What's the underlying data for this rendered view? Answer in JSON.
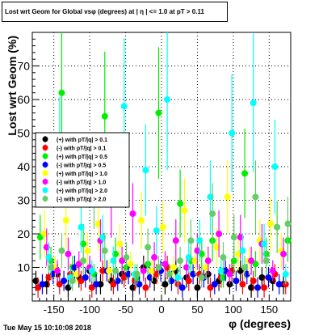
{
  "chart_data": {
    "type": "scatter",
    "title": "Lost wrt Geom for Global vsφ (degrees) at | η | <= 1.0 at pT > 0.11",
    "xlabel": "φ (degrees)",
    "ylabel": "Lost wrt Geom (%)",
    "xlim": [
      -180,
      180
    ],
    "ylim": [
      0,
      80
    ],
    "x_ticks": [
      -150,
      -100,
      -50,
      0,
      50,
      100,
      150
    ],
    "y_ticks": [
      10,
      20,
      30,
      40,
      50,
      60,
      70
    ],
    "grid": true,
    "legend_position": "center-left",
    "series": [
      {
        "name": "(+) with pT/|q| > 0.1",
        "color": "#000000",
        "marker": "circle",
        "x": [
          -175,
          -160,
          -145,
          -130,
          -115,
          -100,
          -85,
          -70,
          -55,
          -40,
          -25,
          -10,
          5,
          20,
          35,
          50,
          65,
          80,
          95,
          110,
          125,
          140,
          155,
          170
        ],
        "y": [
          6,
          5,
          8,
          4,
          7,
          9,
          5,
          6,
          8,
          4,
          10,
          6,
          5,
          9,
          7,
          4,
          8,
          6,
          5,
          9,
          4,
          7,
          6,
          5
        ]
      },
      {
        "name": "(-) with pT/|q| > 0.1",
        "color": "#ff0000",
        "marker": "circle",
        "x": [
          -172,
          -157,
          -142,
          -127,
          -112,
          -97,
          -82,
          -67,
          -52,
          -37,
          -22,
          -7,
          8,
          23,
          38,
          53,
          68,
          83,
          98,
          113,
          128,
          143,
          158,
          173
        ],
        "y": [
          4,
          7,
          5,
          8,
          6,
          4,
          9,
          5,
          7,
          6,
          4,
          8,
          10,
          5,
          6,
          8,
          4,
          7,
          9,
          5,
          6,
          4,
          8,
          5
        ]
      },
      {
        "name": "(+) with pT/|q| > 0.5",
        "color": "#00ee00",
        "marker": "circle",
        "x": [
          -169,
          -154,
          -139,
          -124,
          -109,
          -94,
          -79,
          -64,
          -49,
          -34,
          -19,
          -4,
          11,
          26,
          41,
          56,
          71,
          86,
          101,
          116,
          131,
          146,
          161,
          176
        ],
        "y": [
          19,
          12,
          62,
          10,
          17,
          8,
          55,
          14,
          10,
          7,
          11,
          56,
          8,
          29,
          12,
          14,
          18,
          7,
          12,
          38,
          11,
          14,
          22,
          18
        ]
      },
      {
        "name": "(-) with pT/|q| > 0.5",
        "color": "#0000ff",
        "marker": "circle",
        "x": [
          -166,
          -151,
          -136,
          -121,
          -106,
          -91,
          -76,
          -61,
          -46,
          -31,
          -16,
          -1,
          14,
          29,
          44,
          59,
          74,
          89,
          104,
          119,
          134,
          149,
          164
        ],
        "y": [
          5,
          8,
          6,
          10,
          7,
          5,
          9,
          6,
          8,
          5,
          7,
          9,
          6,
          4,
          8,
          7,
          5,
          9,
          6,
          8,
          4,
          7,
          5
        ]
      },
      {
        "name": "(+) with pT/|q| > 1.0",
        "color": "#ffff00",
        "marker": "circle",
        "x": [
          -163,
          -148,
          -133,
          -118,
          -103,
          -88,
          -73,
          -58,
          -43,
          -28,
          -13,
          2,
          17,
          32,
          47,
          62,
          77,
          92,
          107,
          122,
          137,
          152,
          167
        ],
        "y": [
          20,
          10,
          24,
          8,
          15,
          23,
          9,
          17,
          11,
          24,
          9,
          22,
          10,
          27,
          12,
          10,
          16,
          31,
          14,
          12,
          18,
          23,
          15
        ]
      },
      {
        "name": "(-) with pT/|q| > 1.0",
        "color": "#ff00ff",
        "marker": "circle",
        "x": [
          -160,
          -145,
          -130,
          -115,
          -100,
          -85,
          -70,
          -55,
          -40,
          -25,
          -10,
          5,
          20,
          35,
          50,
          65,
          80,
          95,
          110,
          125,
          140,
          155,
          170
        ],
        "y": [
          16,
          9,
          14,
          11,
          10,
          18,
          29,
          12,
          26,
          9,
          13,
          11,
          18,
          10,
          15,
          12,
          20,
          8,
          19,
          12,
          17,
          9,
          14
        ]
      },
      {
        "name": "(+) with pT/|q| > 2.0",
        "color": "#00ffff",
        "marker": "circle",
        "x": [
          -157,
          -142,
          -127,
          -112,
          -97,
          -82,
          -67,
          -52,
          -37,
          -22,
          -7,
          8,
          23,
          38,
          53,
          68,
          83,
          98,
          113,
          128,
          143,
          158,
          173
        ],
        "y": [
          13,
          45,
          7,
          22,
          9,
          19,
          12,
          58,
          8,
          39,
          21,
          60,
          7,
          13,
          18,
          31,
          9,
          50,
          15,
          59,
          17,
          40,
          8
        ]
      },
      {
        "name": "(-) with pT/|q| > 2.0",
        "color": "#66cc66",
        "marker": "circle",
        "x": [
          -154,
          -139,
          -124,
          -109,
          -94,
          -79,
          -64,
          -49,
          -34,
          -19,
          -4,
          11,
          26,
          41,
          56,
          71,
          86,
          101,
          116,
          131,
          146,
          161,
          176
        ],
        "y": [
          10,
          15,
          6,
          12,
          33,
          15,
          9,
          13,
          8,
          16,
          10,
          8,
          12,
          18,
          7,
          26,
          13,
          19,
          10,
          31,
          12,
          22,
          23
        ]
      }
    ]
  },
  "footer": {
    "timestamp": "Tue May 15 10:10:08 2018"
  }
}
